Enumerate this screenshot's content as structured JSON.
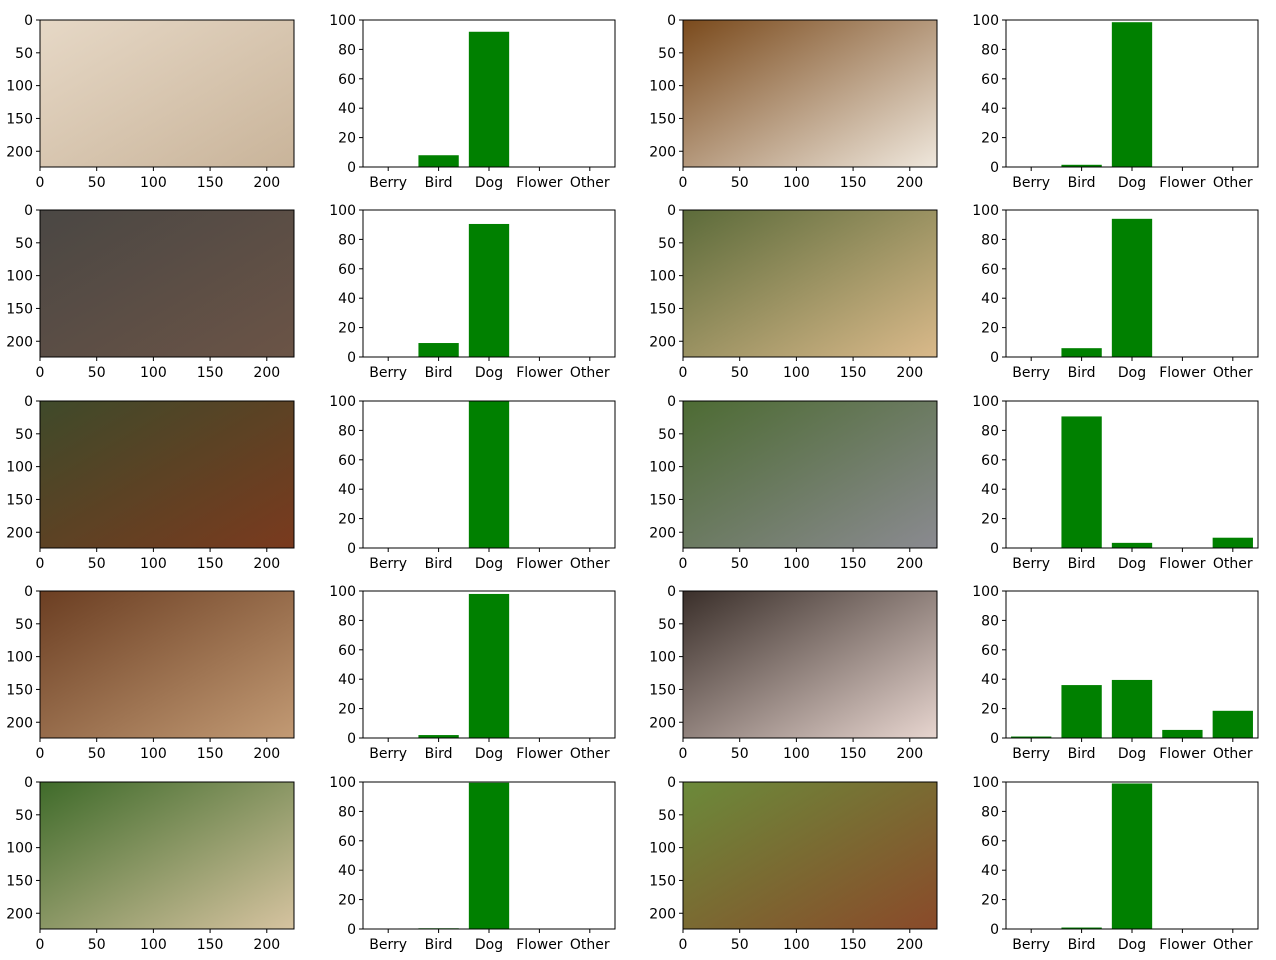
{
  "colors": {
    "bar": "#008000",
    "axis": "#000000",
    "background": "#ffffff"
  },
  "image_axis": {
    "x_ticks": [
      "0",
      "50",
      "100",
      "150",
      "200"
    ],
    "y_ticks": [
      "0",
      "50",
      "100",
      "150",
      "200"
    ],
    "xlim": [
      0,
      224
    ],
    "ylim": [
      224,
      0
    ]
  },
  "chart_data": [
    {
      "type": "bar",
      "photo": "fluffy-cream-dog",
      "photo_colors": [
        "#e6d8c6",
        "#c9b49a"
      ],
      "categories": [
        "Berry",
        "Bird",
        "Dog",
        "Flower",
        "Other"
      ],
      "values": [
        0,
        8,
        92,
        0,
        0
      ],
      "ylim": [
        0,
        100
      ],
      "y_ticks": [
        "0",
        "20",
        "40",
        "60",
        "80",
        "100"
      ]
    },
    {
      "type": "bar",
      "photo": "white-maltese-puppy",
      "photo_colors": [
        "#7a4a1c",
        "#efe7dc"
      ],
      "categories": [
        "Berry",
        "Bird",
        "Dog",
        "Flower",
        "Other"
      ],
      "values": [
        0,
        1.5,
        98.5,
        0,
        0
      ],
      "ylim": [
        0,
        100
      ],
      "y_ticks": [
        "0",
        "20",
        "40",
        "60",
        "80",
        "100"
      ]
    },
    {
      "type": "bar",
      "photo": "brown-labrador-puppy",
      "photo_colors": [
        "#4a4744",
        "#6b5446"
      ],
      "categories": [
        "Berry",
        "Bird",
        "Dog",
        "Flower",
        "Other"
      ],
      "values": [
        0,
        9.5,
        90.5,
        0,
        0
      ],
      "ylim": [
        0,
        100
      ],
      "y_ticks": [
        "0",
        "20",
        "40",
        "60",
        "80",
        "100"
      ]
    },
    {
      "type": "bar",
      "photo": "sleeping-yellow-labrador",
      "photo_colors": [
        "#5c6b3a",
        "#d9b98a"
      ],
      "categories": [
        "Berry",
        "Bird",
        "Dog",
        "Flower",
        "Other"
      ],
      "values": [
        0,
        6,
        94,
        0,
        0
      ],
      "ylim": [
        0,
        100
      ],
      "y_ticks": [
        "0",
        "20",
        "40",
        "60",
        "80",
        "100"
      ]
    },
    {
      "type": "bar",
      "photo": "dogue-de-bordeaux-in-water",
      "photo_colors": [
        "#3f4a2a",
        "#7a3a1e"
      ],
      "categories": [
        "Berry",
        "Bird",
        "Dog",
        "Flower",
        "Other"
      ],
      "values": [
        0,
        0,
        100,
        0,
        0
      ],
      "ylim": [
        0,
        100
      ],
      "y_ticks": [
        "0",
        "20",
        "40",
        "60",
        "80",
        "100"
      ]
    },
    {
      "type": "bar",
      "photo": "grey-great-dane",
      "photo_colors": [
        "#4d6b33",
        "#8a8a90"
      ],
      "categories": [
        "Berry",
        "Bird",
        "Dog",
        "Flower",
        "Other"
      ],
      "values": [
        0,
        89.5,
        3.5,
        0,
        7
      ],
      "ylim": [
        0,
        100
      ],
      "y_ticks": [
        "0",
        "20",
        "40",
        "60",
        "80",
        "100"
      ]
    },
    {
      "type": "bar",
      "photo": "shih-tzu-face",
      "photo_colors": [
        "#6b3e22",
        "#c29a74"
      ],
      "categories": [
        "Berry",
        "Bird",
        "Dog",
        "Flower",
        "Other"
      ],
      "values": [
        0,
        2,
        98,
        0,
        0
      ],
      "ylim": [
        0,
        100
      ],
      "y_ticks": [
        "0",
        "20",
        "40",
        "60",
        "80",
        "100"
      ]
    },
    {
      "type": "bar",
      "photo": "white-dogo-argentino",
      "photo_colors": [
        "#3a2f2a",
        "#e7d5cf"
      ],
      "categories": [
        "Berry",
        "Bird",
        "Dog",
        "Flower",
        "Other"
      ],
      "values": [
        1,
        36,
        39.5,
        5.5,
        18.5
      ],
      "ylim": [
        0,
        100
      ],
      "y_ticks": [
        "0",
        "20",
        "40",
        "60",
        "80",
        "100"
      ]
    },
    {
      "type": "bar",
      "photo": "pug-on-grass",
      "photo_colors": [
        "#3f6b2a",
        "#d6c3a0"
      ],
      "categories": [
        "Berry",
        "Bird",
        "Dog",
        "Flower",
        "Other"
      ],
      "values": [
        0,
        0.5,
        99.5,
        0,
        0
      ],
      "ylim": [
        0,
        100
      ],
      "y_ticks": [
        "0",
        "20",
        "40",
        "60",
        "80",
        "100"
      ]
    },
    {
      "type": "bar",
      "photo": "white-boxer-dog",
      "photo_colors": [
        "#6b8a3a",
        "#8a4a2a"
      ],
      "categories": [
        "Berry",
        "Bird",
        "Dog",
        "Flower",
        "Other"
      ],
      "values": [
        0,
        1,
        99,
        0,
        0
      ],
      "ylim": [
        0,
        100
      ],
      "y_ticks": [
        "0",
        "20",
        "40",
        "60",
        "80",
        "100"
      ]
    }
  ]
}
